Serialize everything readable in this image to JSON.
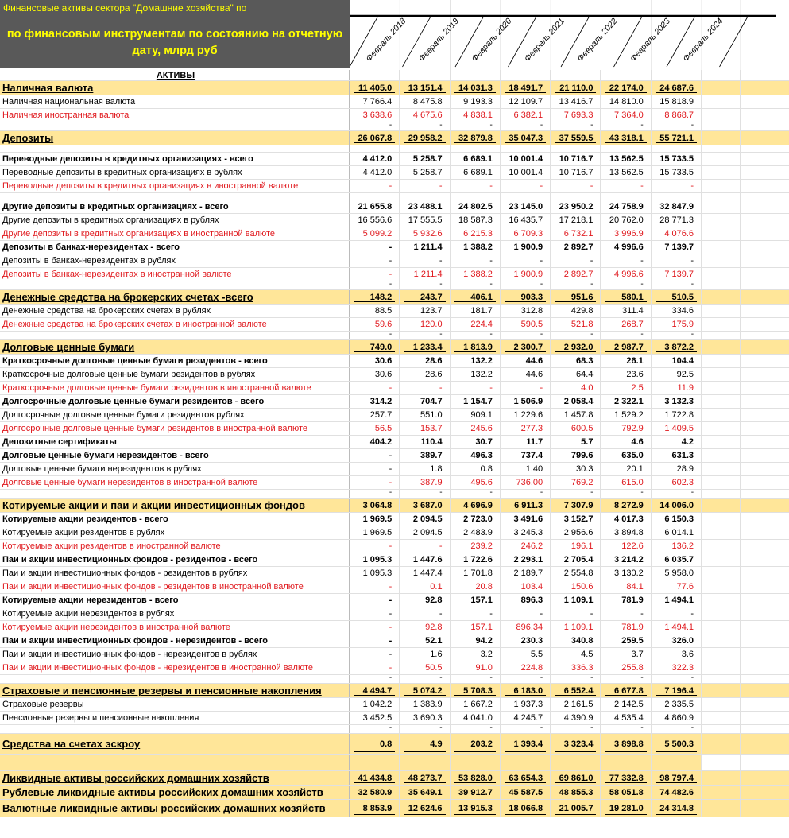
{
  "header": {
    "title_line1": "Финансовые активы сектора \"Домашние хозяйства\" по",
    "title_line2": "по  финансовым инструментам по состоянию на отчетную",
    "title_line3": "дату, млрд руб",
    "columns": [
      "Февраль 2018",
      "Февраль 2019",
      "Февраль 2020",
      "Февраль 2021",
      "Февраль 2022",
      "Февраль 2023",
      "Февраль 2024"
    ]
  },
  "colors": {
    "title_bg": "#595959",
    "title_text": "#ffff00",
    "highlight": "#ffe699",
    "foreign_currency": "#e0191e"
  },
  "rows": [
    {
      "type": "head",
      "label": "АКТИВЫ",
      "values": []
    },
    {
      "type": "total",
      "label": "Наличная валюта",
      "values": [
        "11 405.0",
        "13 151.4",
        "14 031.3",
        "18 491.7",
        "21 110.0",
        "22 174.0",
        "24 687.6"
      ]
    },
    {
      "type": "normal",
      "label": "Наличная национальная валюта",
      "values": [
        "7 766.4",
        "8 475.8",
        "9 193.3",
        "12 109.7",
        "13 416.7",
        "14 810.0",
        "15 818.9"
      ]
    },
    {
      "type": "red",
      "label": "Наличная иностранная валюта",
      "values": [
        "3 638.6",
        "4 675.6",
        "4 838.1",
        "6 382.1",
        "7 693.3",
        "7 364.0",
        "8 868.7"
      ]
    },
    {
      "type": "dash",
      "label": "",
      "values": [
        "-",
        "-",
        "-",
        "-",
        "-",
        "-",
        "-"
      ]
    },
    {
      "type": "total",
      "label": "Депозиты",
      "values": [
        "26 067.8",
        "29 958.2",
        "32 879.8",
        "35 047.3",
        "37 559.5",
        "43 318.1",
        "55 721.1"
      ]
    },
    {
      "type": "blank",
      "label": "",
      "values": []
    },
    {
      "type": "bold",
      "label": "Переводные депозиты в кредитных организациях - всего",
      "values": [
        "4 412.0",
        "5 258.7",
        "6 689.1",
        "10 001.4",
        "10 716.7",
        "13 562.5",
        "15 733.5"
      ]
    },
    {
      "type": "normal",
      "label": "Переводные депозиты в кредитных организациях в рублях",
      "values": [
        "4 412.0",
        "5 258.7",
        "6 689.1",
        "10 001.4",
        "10 716.7",
        "13 562.5",
        "15 733.5"
      ]
    },
    {
      "type": "red",
      "label": "Переводные депозиты в кредитных организациях в иностранной валюте",
      "values": [
        "-",
        "-",
        "-",
        "-",
        "-",
        "-",
        "-"
      ]
    },
    {
      "type": "blank",
      "label": "",
      "values": []
    },
    {
      "type": "bold",
      "label": "Другие депозиты в кредитных организациях - всего",
      "values": [
        "21 655.8",
        "23 488.1",
        "24 802.5",
        "23 145.0",
        "23 950.2",
        "24 758.9",
        "32 847.9"
      ]
    },
    {
      "type": "normal",
      "label": "Другие депозиты в кредитных организациях в рублях",
      "values": [
        "16 556.6",
        "17 555.5",
        "18 587.3",
        "16 435.7",
        "17 218.1",
        "20 762.0",
        "28 771.3"
      ]
    },
    {
      "type": "red",
      "label": "Другие депозиты в кредитных организациях в иностранной валюте",
      "values": [
        "5 099.2",
        "5 932.6",
        "6 215.3",
        "6 709.3",
        "6 732.1",
        "3 996.9",
        "4 076.6"
      ]
    },
    {
      "type": "bold",
      "label": "Депозиты в банках-нерезидентах - всего",
      "values": [
        "-",
        "1 211.4",
        "1 388.2",
        "1 900.9",
        "2 892.7",
        "4 996.6",
        "7 139.7"
      ]
    },
    {
      "type": "normal",
      "label": "Депозиты в банках-нерезидентах в рублях",
      "values": [
        "-",
        "-",
        "-",
        "-",
        "-",
        "-",
        "-"
      ]
    },
    {
      "type": "red",
      "label": "Депозиты в банках-нерезидентах в иностранной валюте",
      "values": [
        "-",
        "1 211.4",
        "1 388.2",
        "1 900.9",
        "2 892.7",
        "4 996.6",
        "7 139.7"
      ]
    },
    {
      "type": "dash",
      "label": "",
      "values": [
        "-",
        "-",
        "-",
        "-",
        "-",
        "-",
        "-"
      ]
    },
    {
      "type": "total",
      "label": "Денежные средства на брокерских счетах -всего",
      "values": [
        "148.2",
        "243.7",
        "406.1",
        "903.3",
        "951.6",
        "580.1",
        "510.5"
      ]
    },
    {
      "type": "normal",
      "label": "Денежные средства на брокерских счетах в рублях",
      "values": [
        "88.5",
        "123.7",
        "181.7",
        "312.8",
        "429.8",
        "311.4",
        "334.6"
      ]
    },
    {
      "type": "red",
      "label": "Денежные средства на брокерских счетах в иностранной валюте",
      "values": [
        "59.6",
        "120.0",
        "224.4",
        "590.5",
        "521.8",
        "268.7",
        "175.9"
      ]
    },
    {
      "type": "dash",
      "label": "",
      "values": [
        "-",
        "-",
        "-",
        "-",
        "-",
        "-",
        "-"
      ]
    },
    {
      "type": "total",
      "label": "Долговые ценные бумаги",
      "values": [
        "749.0",
        "1 233.4",
        "1 813.9",
        "2 300.7",
        "2 932.0",
        "2 987.7",
        "3 872.2"
      ]
    },
    {
      "type": "bold",
      "label": "Краткосрочные долговые ценные бумаги резидентов - всего",
      "values": [
        "30.6",
        "28.6",
        "132.2",
        "44.6",
        "68.3",
        "26.1",
        "104.4"
      ]
    },
    {
      "type": "normal",
      "label": "Краткосрочные долговые ценные бумаги резидентов в рублях",
      "values": [
        "30.6",
        "28.6",
        "132.2",
        "44.6",
        "64.4",
        "23.6",
        "92.5"
      ]
    },
    {
      "type": "red",
      "label": "Краткосрочные долговые ценные бумаги резидентов в иностранной валюте",
      "values": [
        "-",
        "-",
        "-",
        "-",
        "4.0",
        "2.5",
        "11.9"
      ]
    },
    {
      "type": "bold",
      "label": "Долгосрочные долговые ценные бумаги резидентов - всего",
      "values": [
        "314.2",
        "704.7",
        "1 154.7",
        "1 506.9",
        "2 058.4",
        "2 322.1",
        "3 132.3"
      ]
    },
    {
      "type": "normal",
      "label": "Долгосрочные долговые ценные бумаги резидентов рублях",
      "values": [
        "257.7",
        "551.0",
        "909.1",
        "1 229.6",
        "1 457.8",
        "1 529.2",
        "1 722.8"
      ]
    },
    {
      "type": "red",
      "label": "Долгосрочные долговые ценные бумаги резидентов в иностранной валюте",
      "values": [
        "56.5",
        "153.7",
        "245.6",
        "277.3",
        "600.5",
        "792.9",
        "1 409.5"
      ]
    },
    {
      "type": "bold",
      "label": "Депозитные сертификаты",
      "values": [
        "404.2",
        "110.4",
        "30.7",
        "11.7",
        "5.7",
        "4.6",
        "4.2"
      ]
    },
    {
      "type": "bold",
      "label": "Долговые ценные бумаги нерезидентов - всего",
      "values": [
        "-",
        "389.7",
        "496.3",
        "737.4",
        "799.6",
        "635.0",
        "631.3"
      ]
    },
    {
      "type": "normal",
      "label": "Долговые ценные бумаги нерезидентов в рублях",
      "values": [
        "-",
        "1.8",
        "0.8",
        "1.40",
        "30.3",
        "20.1",
        "28.9"
      ]
    },
    {
      "type": "red",
      "label": "Долговые ценные бумаги нерезидентов в иностранной валюте",
      "values": [
        "-",
        "387.9",
        "495.6",
        "736.00",
        "769.2",
        "615.0",
        "602.3"
      ]
    },
    {
      "type": "dash",
      "label": "",
      "values": [
        "-",
        "-",
        "-",
        "-",
        "-",
        "-",
        "-"
      ]
    },
    {
      "type": "total",
      "label": "Котируемые акции и паи и акции инвестиционных фондов",
      "values": [
        "3 064.8",
        "3 687.0",
        "4 696.9",
        "6 911.3",
        "7 307.9",
        "8 272.9",
        "14 006.0"
      ]
    },
    {
      "type": "bold",
      "label": "Котируемые акции резидентов - всего",
      "values": [
        "1 969.5",
        "2 094.5",
        "2 723.0",
        "3 491.6",
        "3 152.7",
        "4 017.3",
        "6 150.3"
      ]
    },
    {
      "type": "normal",
      "label": "Котируемые акции резидентов в рублях",
      "values": [
        "1 969.5",
        "2 094.5",
        "2 483.9",
        "3 245.3",
        "2 956.6",
        "3 894.8",
        "6 014.1"
      ]
    },
    {
      "type": "red",
      "label": "Котируемые акции резидентов в иностранной валюте",
      "values": [
        "-",
        "-",
        "239.2",
        "246.2",
        "196.1",
        "122.6",
        "136.2"
      ]
    },
    {
      "type": "bold",
      "label": "Паи и акции инвестиционных фондов - резидентов - всего",
      "values": [
        "1 095.3",
        "1 447.6",
        "1 722.6",
        "2 293.1",
        "2 705.4",
        "3 214.2",
        "6 035.7"
      ]
    },
    {
      "type": "normal",
      "label": "Паи и акции инвестиционных фондов - резидентов в рублях",
      "values": [
        "1 095.3",
        "1 447.4",
        "1 701.8",
        "2 189.7",
        "2 554.8",
        "3 130.2",
        "5 958.0"
      ]
    },
    {
      "type": "red",
      "label": "Паи и акции инвестиционных фондов - резидентов в иностранной валюте",
      "values": [
        "-",
        "0.1",
        "20.8",
        "103.4",
        "150.6",
        "84.1",
        "77.6"
      ]
    },
    {
      "type": "bold",
      "label": "Котируемые акции нерезидентов - всего",
      "values": [
        "-",
        "92.8",
        "157.1",
        "896.3",
        "1 109.1",
        "781.9",
        "1 494.1"
      ]
    },
    {
      "type": "normal",
      "label": "Котируемые акции нерезидентов в рублях",
      "values": [
        "-",
        "-",
        "-",
        "-",
        "-",
        "-",
        "-"
      ]
    },
    {
      "type": "red",
      "label": "Котируемые акции нерезидентов в иностранной валюте",
      "values": [
        "-",
        "92.8",
        "157.1",
        "896.34",
        "1 109.1",
        "781.9",
        "1 494.1"
      ]
    },
    {
      "type": "bold",
      "label": "Паи и акции инвестиционных фондов - нерезидентов - всего",
      "values": [
        "-",
        "52.1",
        "94.2",
        "230.3",
        "340.8",
        "259.5",
        "326.0"
      ]
    },
    {
      "type": "normal",
      "label": "Паи и акции инвестиционных фондов - нерезидентов в рублях",
      "values": [
        "-",
        "1.6",
        "3.2",
        "5.5",
        "4.5",
        "3.7",
        "3.6"
      ]
    },
    {
      "type": "red",
      "label": "Паи и акции инвестиционных фондов - нерезидентов в иностранной валюте",
      "values": [
        "-",
        "50.5",
        "91.0",
        "224.8",
        "336.3",
        "255.8",
        "322.3"
      ]
    },
    {
      "type": "dash",
      "label": "",
      "values": [
        "-",
        "-",
        "-",
        "-",
        "-",
        "-",
        "-"
      ]
    },
    {
      "type": "total",
      "label": "Страховые и пенсионные резервы и пенсионные накопления",
      "values": [
        "4 494.7",
        "5 074.2",
        "5 708.3",
        "6 183.0",
        "6 552.4",
        "6 677.8",
        "7 196.4"
      ]
    },
    {
      "type": "normal",
      "label": "Страховые  резервы",
      "values": [
        "1 042.2",
        "1 383.9",
        "1 667.2",
        "1 937.3",
        "2 161.5",
        "2 142.5",
        "2 335.5"
      ]
    },
    {
      "type": "normal",
      "label": "Пенсионные резервы и пенсионные накопления",
      "values": [
        "3 452.5",
        "3 690.3",
        "4 041.0",
        "4 245.7",
        "4 390.9",
        "4 535.4",
        "4 860.9"
      ]
    },
    {
      "type": "dash",
      "label": "",
      "values": [
        "-",
        "-",
        "-",
        "-",
        "-",
        "-",
        "-"
      ]
    },
    {
      "type": "total",
      "label": "Средства на счетах эскроу",
      "values": [
        "0.8",
        "4.9",
        "203.2",
        "1 393.4",
        "3 323.4",
        "3 898.8",
        "5 500.3"
      ]
    },
    {
      "type": "ybar",
      "label": "",
      "values": []
    },
    {
      "type": "total",
      "label": "Ликвидные активы российских домашних хозяйств",
      "values": [
        "41 434.8",
        "48 273.7",
        "53 828.0",
        "63 654.3",
        "69 861.0",
        "77 332.8",
        "98 797.4"
      ]
    },
    {
      "type": "total",
      "label": "Рублевые ликвидные активы российских домашних хозяйств",
      "values": [
        "32 580.9",
        "35 649.1",
        "39 912.7",
        "45 587.5",
        "48 855.3",
        "58 051.8",
        "74 482.6"
      ]
    },
    {
      "type": "total",
      "label": "Валютные ликвидные активы российских домашних хозяйств",
      "values": [
        "8 853.9",
        "12 624.6",
        "13 915.3",
        "18 066.8",
        "21 005.7",
        "19 281.0",
        "24 314.8"
      ]
    }
  ]
}
